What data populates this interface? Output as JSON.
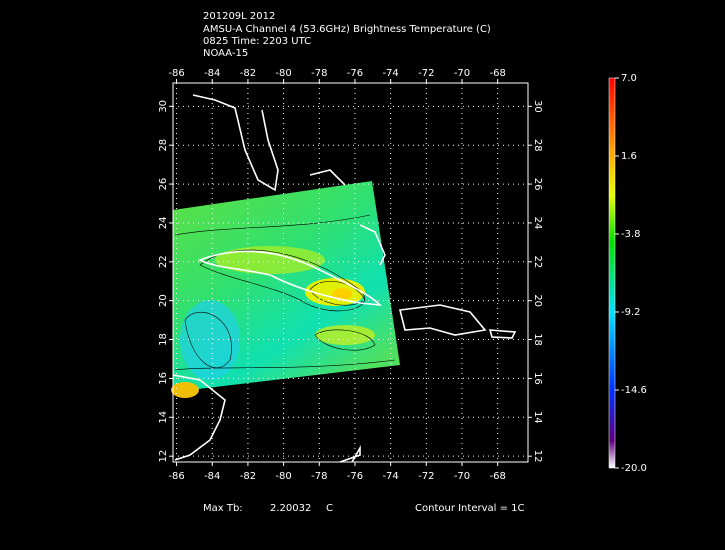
{
  "header": {
    "lines": [
      "201209L 2012",
      "AMSU-A Channel 4 (53.6GHz) Brightness Temperature (C)",
      "0825 Time: 2203 UTC",
      "NOAA-15"
    ]
  },
  "map": {
    "xlim": [
      -86.2,
      -66.3
    ],
    "ylim": [
      11.7,
      31.2
    ],
    "xticks": [
      -86,
      -84,
      -82,
      -80,
      -78,
      -76,
      -74,
      -72,
      -70,
      -68
    ],
    "yticks": [
      12,
      14,
      16,
      18,
      20,
      22,
      24,
      26,
      28,
      30
    ],
    "grid": true
  },
  "colorbar": {
    "lim": [
      -20,
      7
    ],
    "ticks": [
      {
        "value": 7,
        "label": "7.0"
      },
      {
        "value": 1.6,
        "label": "1.6"
      },
      {
        "value": -3.8,
        "label": "-3.8"
      },
      {
        "value": -9.2,
        "label": "-9.2"
      },
      {
        "value": -14.6,
        "label": "-14.6"
      },
      {
        "value": -20,
        "label": "-20.0"
      }
    ]
  },
  "footer": {
    "max_label": "Max Tb:",
    "max_value": 2.20032,
    "unit": "C",
    "contour": "Contour Interval = 1C"
  }
}
